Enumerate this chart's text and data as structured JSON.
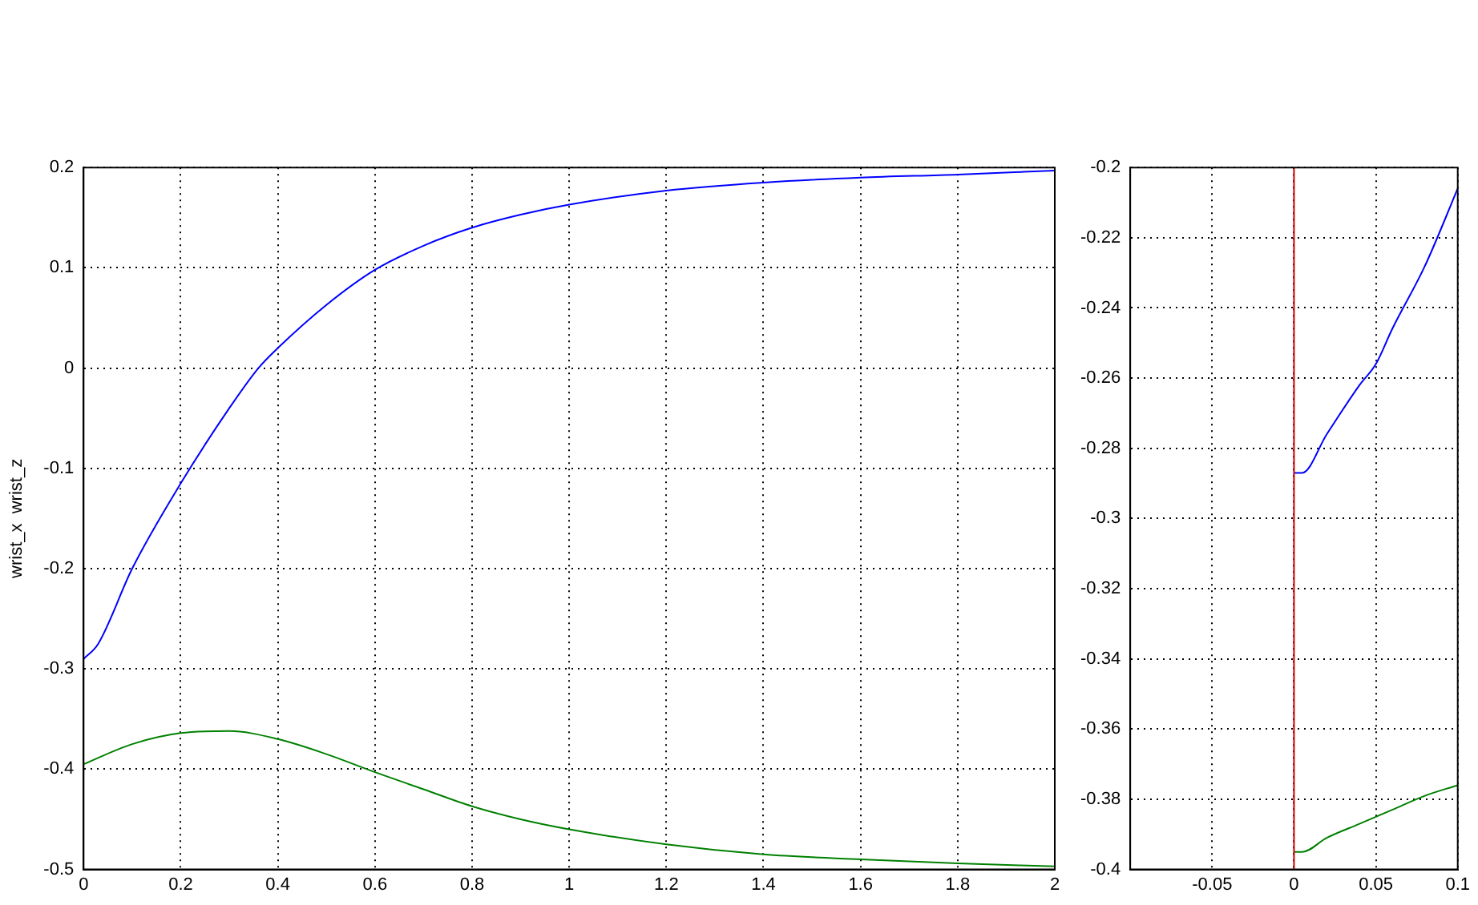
{
  "chart_data": [
    {
      "type": "line",
      "ylabel": "wrist_x  wrist_z",
      "xlim": [
        0,
        2
      ],
      "ylim": [
        -0.5,
        0.2
      ],
      "xticks": [
        0,
        0.2,
        0.4,
        0.6,
        0.8,
        1,
        1.2,
        1.4,
        1.6,
        1.8,
        2
      ],
      "yticks": [
        -0.5,
        -0.4,
        -0.3,
        -0.2,
        -0.1,
        0,
        0.1,
        0.2
      ],
      "grid": true,
      "series": [
        {
          "color": "#0000ff",
          "x": [
            0,
            0.03,
            0.1,
            0.2,
            0.3,
            0.36,
            0.4,
            0.5,
            0.6,
            0.7,
            0.8,
            0.9,
            1.0,
            1.2,
            1.4,
            1.6,
            1.8,
            2.0
          ],
          "values": [
            -0.29,
            -0.275,
            -0.2,
            -0.115,
            -0.04,
            0,
            0.02,
            0.063,
            0.098,
            0.122,
            0.14,
            0.153,
            0.163,
            0.177,
            0.185,
            0.19,
            0.193,
            0.197
          ]
        },
        {
          "color": "#008000",
          "x": [
            0,
            0.1,
            0.2,
            0.3,
            0.4,
            0.5,
            0.6,
            0.7,
            0.8,
            0.9,
            1.0,
            1.2,
            1.4,
            1.6,
            1.8,
            2.0
          ],
          "values": [
            -0.395,
            -0.375,
            -0.364,
            -0.362,
            -0.37,
            -0.385,
            -0.403,
            -0.42,
            -0.437,
            -0.45,
            -0.46,
            -0.475,
            -0.485,
            -0.49,
            -0.494,
            -0.497
          ]
        }
      ]
    },
    {
      "type": "line",
      "xlim": [
        -0.1,
        0.1
      ],
      "ylim": [
        -0.4,
        -0.2
      ],
      "xticks": [
        {
          "value": -0.1,
          "label": null
        },
        -0.05,
        0,
        0.05,
        0.1
      ],
      "yticks": [
        -0.4,
        -0.38,
        -0.36,
        -0.34,
        -0.32,
        -0.3,
        -0.28,
        -0.26,
        -0.24,
        -0.22,
        -0.2
      ],
      "grid": true,
      "ref_lines": [
        {
          "axis": "x",
          "value": 0,
          "color": "#cc0000"
        }
      ],
      "series": [
        {
          "color": "#0000ff",
          "x": [
            0,
            0.005,
            0.02,
            0.04,
            0.05,
            0.06,
            0.08,
            0.1
          ],
          "values": [
            -0.287,
            -0.287,
            -0.276,
            -0.262,
            -0.256,
            -0.246,
            -0.228,
            -0.206
          ]
        },
        {
          "color": "#008000",
          "x": [
            0,
            0.005,
            0.02,
            0.04,
            0.06,
            0.08,
            0.1
          ],
          "values": [
            -0.395,
            -0.395,
            -0.391,
            -0.387,
            -0.383,
            -0.379,
            -0.376
          ]
        }
      ]
    }
  ]
}
